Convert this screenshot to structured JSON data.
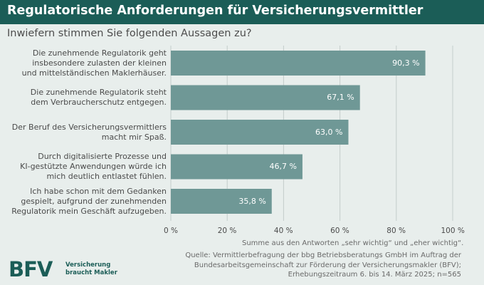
{
  "header": {
    "title": "Regulatorische Anforderungen für Versicherungsvermittler",
    "subtitle": "Inwiefern stimmen Sie folgenden Aussagen zu?"
  },
  "chart_data": {
    "type": "bar",
    "orientation": "horizontal",
    "title": "Regulatorische Anforderungen für Versicherungsvermittler",
    "subtitle": "Inwiefern stimmen Sie folgenden Aussagen zu?",
    "categories": [
      [
        "Die zunehmende Regulatorik geht",
        "insbesondere zulasten der kleinen",
        "und mittelständischen Maklerhäuser."
      ],
      [
        "Die zunehmende Regulatorik steht",
        "dem Verbraucherschutz entgegen."
      ],
      [
        "Der Beruf des Versicherungsvermittlers",
        "macht mir Spaß."
      ],
      [
        "Durch digitalisierte Prozesse und",
        "KI-gestützte Anwendungen würde ich",
        "mich deutlich entlastet fühlen."
      ],
      [
        "Ich habe schon mit dem Gedanken",
        "gespielt, aufgrund der zunehmenden",
        "Regulatorik mein Geschäft aufzugeben."
      ]
    ],
    "values": [
      90.3,
      67.1,
      63.0,
      46.7,
      35.8
    ],
    "value_labels": [
      "90,3 %",
      "67,1 %",
      "63,0 %",
      "46,7 %",
      "35,8 %"
    ],
    "xlim": [
      0,
      100
    ],
    "xticks": [
      0,
      20,
      40,
      60,
      80,
      100
    ],
    "xtick_labels": [
      "0 %",
      "20 %",
      "40 %",
      "60 %",
      "80 %",
      "100 %"
    ],
    "grid": true,
    "bar_color": "#6f9896",
    "grid_color": "#c4cdcb"
  },
  "note": "Summe aus den Antworten „sehr wichtig“ und „eher wichtig“.",
  "source": [
    "Quelle: Vermittlerbefragung der bbg Betriebsberatungs GmbH im Auftrag der",
    "Bundesarbeitsgemeinschaft zur Förderung der Versicherungsmakler (BFV);",
    "Erhebungszeitraum 6. bis 14. März 2025; n=565"
  ],
  "logo": {
    "mark": "BFV",
    "claim_line1": "Versicherung",
    "claim_line2": "braucht Makler"
  },
  "colors": {
    "header_bg": "#1b5d57",
    "background": "#e8eeec",
    "brand": "#1b5d57"
  }
}
